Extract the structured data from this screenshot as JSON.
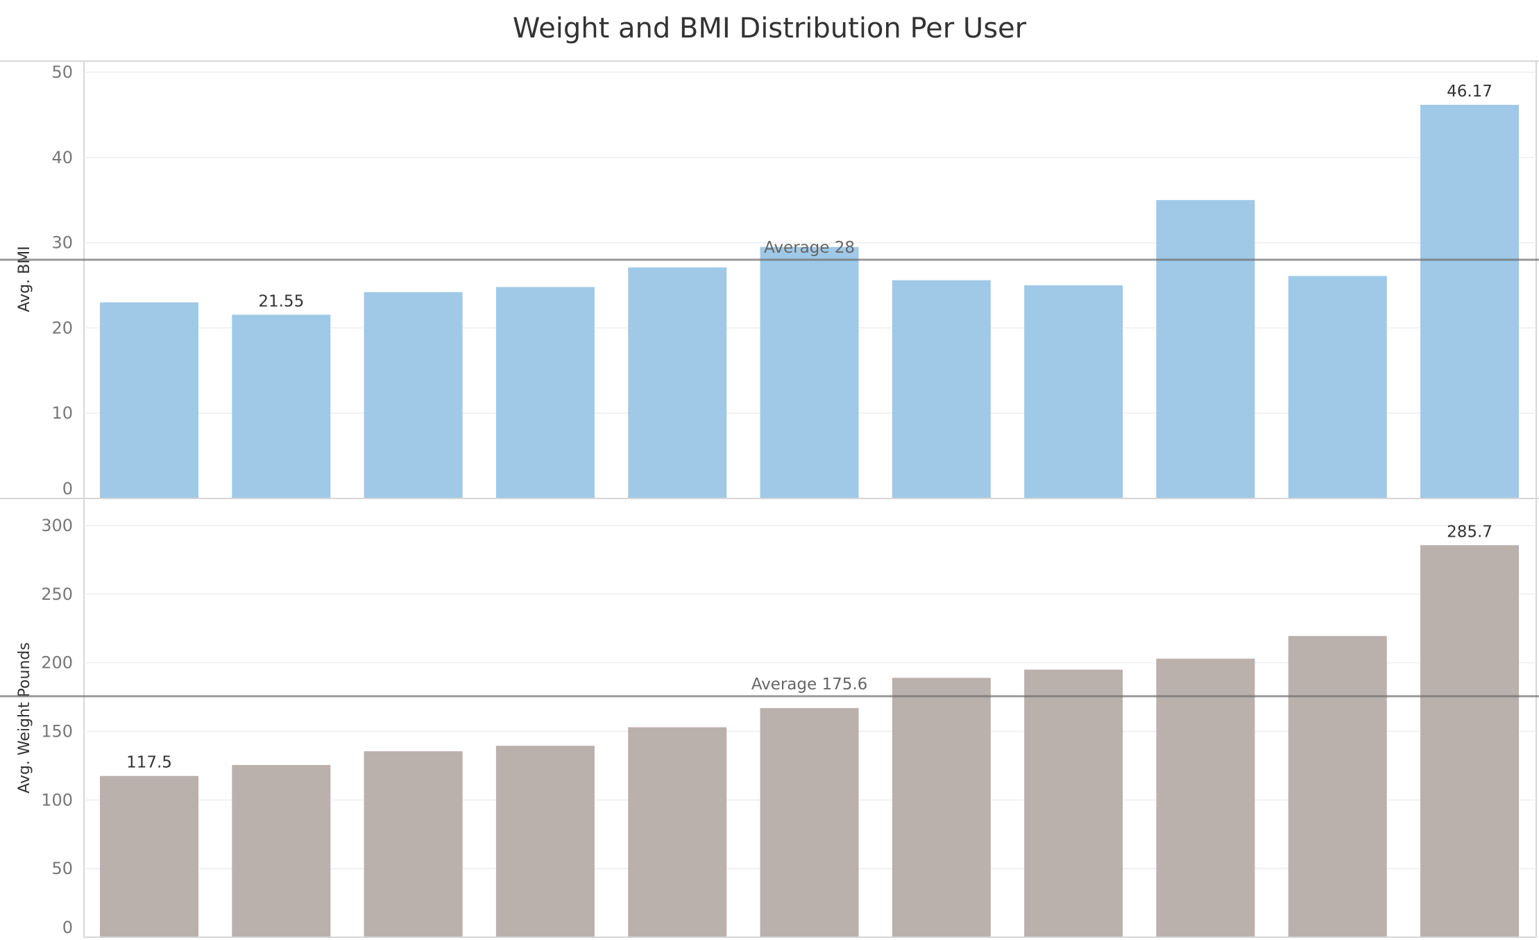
{
  "chart_data": {
    "title": "Weight and BMI Distribution Per User",
    "type": "bar",
    "panels": [
      {
        "id": "bmi",
        "ylabel": "Avg. BMI",
        "ylim": [
          0,
          50
        ],
        "ticks": [
          0,
          10,
          20,
          30,
          40,
          50
        ],
        "color": "#9FC9E7",
        "values": [
          23.0,
          21.55,
          24.2,
          24.8,
          27.1,
          29.5,
          25.6,
          25.0,
          35.0,
          26.1,
          46.17
        ],
        "data_labels": [
          "",
          "21.55",
          "",
          "",
          "",
          "",
          "",
          "",
          "",
          "",
          "46.17"
        ],
        "reference_line": {
          "value": 28,
          "label": "Average 28"
        }
      },
      {
        "id": "weight",
        "ylabel": "Avg. Weight Pounds",
        "ylim": [
          0,
          300
        ],
        "ticks": [
          0,
          50,
          100,
          150,
          200,
          250,
          300
        ],
        "color": "#BAB0AC",
        "values": [
          117.5,
          125.5,
          135.5,
          139.5,
          153.0,
          167.0,
          189.0,
          195.0,
          203.0,
          219.5,
          285.7
        ],
        "data_labels": [
          "117.5",
          "",
          "",
          "",
          "",
          "",
          "",
          "",
          "",
          "",
          "285.7"
        ],
        "reference_line": {
          "value": 175.6,
          "label": "Average 175.6"
        }
      }
    ],
    "grid": true,
    "legend": "none"
  }
}
